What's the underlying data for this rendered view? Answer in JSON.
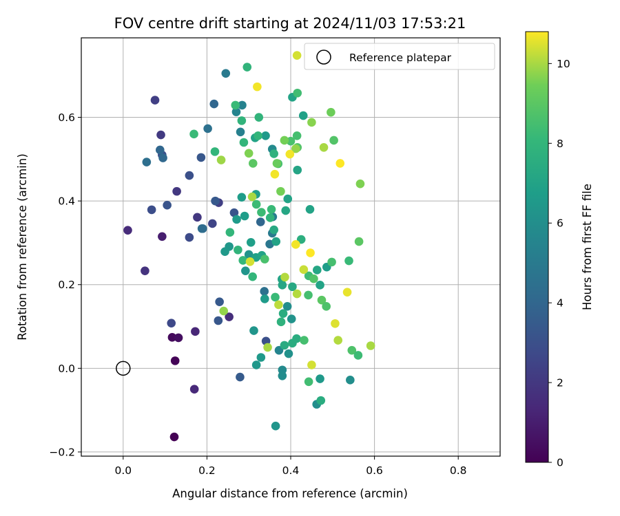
{
  "chart_data": {
    "type": "scatter",
    "title": "FOV centre drift starting at 2024/11/03 17:53:21",
    "xlabel": "Angular distance from reference (arcmin)",
    "ylabel": "Rotation from reference (arcmin)",
    "xlim": [
      -0.1,
      0.9
    ],
    "ylim": [
      -0.21,
      0.79
    ],
    "xticks": [
      0.0,
      0.2,
      0.4,
      0.6,
      0.8
    ],
    "xtick_labels": [
      "0.0",
      "0.2",
      "0.4",
      "0.6",
      "0.8"
    ],
    "yticks": [
      -0.2,
      0.0,
      0.2,
      0.4,
      0.6
    ],
    "ytick_labels": [
      "−0.2",
      "0.0",
      "0.2",
      "0.4",
      "0.6"
    ],
    "grid": true,
    "legend": {
      "label": "Reference platepar",
      "location": "upper right"
    },
    "reference_point": {
      "x": 0.0,
      "y": 0.0
    },
    "colorbar": {
      "label": "Hours from first FF file",
      "colormap": "viridis",
      "range": [
        0,
        10.8
      ],
      "ticks": [
        0,
        2,
        4,
        6,
        8,
        10
      ],
      "tick_labels": [
        "0",
        "2",
        "4",
        "6",
        "8",
        "10"
      ]
    },
    "points": [
      [
        0.122,
        -0.164,
        0.0
      ],
      [
        0.124,
        0.018,
        0.1
      ],
      [
        0.117,
        0.074,
        0.3
      ],
      [
        0.132,
        0.073,
        0.5
      ],
      [
        0.093,
        0.315,
        1.0
      ],
      [
        0.172,
        0.088,
        1.3
      ],
      [
        0.17,
        -0.05,
        1.4
      ],
      [
        0.011,
        0.33,
        1.5
      ],
      [
        0.253,
        0.123,
        1.6
      ],
      [
        0.052,
        0.233,
        1.8
      ],
      [
        0.128,
        0.423,
        2.0
      ],
      [
        0.177,
        0.361,
        2.0
      ],
      [
        0.09,
        0.558,
        2.1
      ],
      [
        0.076,
        0.641,
        2.3
      ],
      [
        0.228,
        0.396,
        2.3
      ],
      [
        0.213,
        0.346,
        2.5
      ],
      [
        0.115,
        0.108,
        2.7
      ],
      [
        0.158,
        0.313,
        2.8
      ],
      [
        0.068,
        0.379,
        2.9
      ],
      [
        0.093,
        0.51,
        3.0
      ],
      [
        0.158,
        0.461,
        3.0
      ],
      [
        0.105,
        0.39,
        3.2
      ],
      [
        0.227,
        0.114,
        3.3
      ],
      [
        0.186,
        0.504,
        3.3
      ],
      [
        0.23,
        0.159,
        3.4
      ],
      [
        0.22,
        0.4,
        3.4
      ],
      [
        0.279,
        -0.021,
        3.5
      ],
      [
        0.217,
        0.632,
        4.0
      ],
      [
        0.088,
        0.522,
        4.0
      ],
      [
        0.095,
        0.503,
        4.1
      ],
      [
        0.19,
        0.334,
        4.2
      ],
      [
        0.188,
        0.334,
        4.3
      ],
      [
        0.056,
        0.493,
        4.4
      ],
      [
        0.202,
        0.573,
        4.5
      ],
      [
        0.245,
        0.705,
        5.0
      ],
      [
        0.27,
        0.613,
        5.5
      ],
      [
        0.284,
        0.629,
        5.4
      ],
      [
        0.28,
        0.565,
        5.3
      ],
      [
        0.265,
        0.372,
        3.2
      ],
      [
        0.341,
        0.065,
        3.0
      ],
      [
        0.328,
        0.35,
        4.0
      ],
      [
        0.337,
        0.184,
        4.5
      ],
      [
        0.35,
        0.297,
        4.8
      ],
      [
        0.356,
        0.323,
        5.0
      ],
      [
        0.357,
        0.362,
        5.1
      ],
      [
        0.372,
        0.043,
        5.5
      ],
      [
        0.38,
        -0.004,
        5.8
      ],
      [
        0.38,
        -0.018,
        5.9
      ],
      [
        0.392,
        0.148,
        6.0
      ],
      [
        0.395,
        0.035,
        6.1
      ],
      [
        0.402,
        0.118,
        6.2
      ],
      [
        0.312,
        0.09,
        6.3
      ],
      [
        0.318,
        0.008,
        6.4
      ],
      [
        0.329,
        0.026,
        6.5
      ],
      [
        0.338,
        0.166,
        6.6
      ],
      [
        0.3,
        0.272,
        6.2
      ],
      [
        0.292,
        0.233,
        6.3
      ],
      [
        0.253,
        0.291,
        6.4
      ],
      [
        0.243,
        0.279,
        6.5
      ],
      [
        0.271,
        0.356,
        6.6
      ],
      [
        0.283,
        0.409,
        6.7
      ],
      [
        0.317,
        0.416,
        6.8
      ],
      [
        0.29,
        0.364,
        6.7
      ],
      [
        0.305,
        0.301,
        6.8
      ],
      [
        0.317,
        0.265,
        6.9
      ],
      [
        0.331,
        0.27,
        7.0
      ],
      [
        0.356,
        0.524,
        5.8
      ],
      [
        0.34,
        0.556,
        6.5
      ],
      [
        0.315,
        0.551,
        7.0
      ],
      [
        0.393,
        0.405,
        7.0
      ],
      [
        0.388,
        0.377,
        7.2
      ],
      [
        0.36,
        0.331,
        7.3
      ],
      [
        0.365,
        0.303,
        7.0
      ],
      [
        0.379,
        0.213,
        7.1
      ],
      [
        0.38,
        0.199,
        7.2
      ],
      [
        0.404,
        0.195,
        7.3
      ],
      [
        0.385,
        0.055,
        7.4
      ],
      [
        0.404,
        0.06,
        7.5
      ],
      [
        0.414,
        0.071,
        7.5
      ],
      [
        0.462,
        -0.086,
        6.0
      ],
      [
        0.47,
        -0.025,
        6.5
      ],
      [
        0.472,
        -0.077,
        7.5
      ],
      [
        0.542,
        -0.028,
        6.0
      ],
      [
        0.43,
        0.604,
        6.9
      ],
      [
        0.416,
        0.474,
        7.1
      ],
      [
        0.446,
        0.38,
        7.0
      ],
      [
        0.47,
        0.199,
        7.0
      ],
      [
        0.463,
        0.235,
        7.2
      ],
      [
        0.486,
        0.242,
        6.7
      ],
      [
        0.404,
        0.648,
        7.0
      ],
      [
        0.364,
        -0.138,
        6.3
      ],
      [
        0.382,
        0.131,
        7.5
      ],
      [
        0.377,
        0.111,
        7.8
      ],
      [
        0.425,
        0.308,
        7.6
      ],
      [
        0.324,
        0.6,
        7.9
      ],
      [
        0.283,
        0.592,
        7.9
      ],
      [
        0.288,
        0.54,
        8.0
      ],
      [
        0.268,
        0.629,
        8.2
      ],
      [
        0.296,
        0.72,
        7.9
      ],
      [
        0.322,
        0.556,
        8.0
      ],
      [
        0.219,
        0.518,
        8.0
      ],
      [
        0.169,
        0.56,
        8.2
      ],
      [
        0.255,
        0.325,
        8.0
      ],
      [
        0.274,
        0.283,
        7.9
      ],
      [
        0.286,
        0.258,
        8.1
      ],
      [
        0.309,
        0.219,
        8.0
      ],
      [
        0.318,
        0.392,
        8.3
      ],
      [
        0.33,
        0.373,
        8.3
      ],
      [
        0.354,
        0.38,
        8.2
      ],
      [
        0.363,
        0.17,
        8.2
      ],
      [
        0.351,
        0.36,
        7.9
      ],
      [
        0.36,
        0.513,
        7.8
      ],
      [
        0.37,
        0.489,
        8.5
      ],
      [
        0.4,
        0.543,
        8.6
      ],
      [
        0.416,
        0.658,
        8.4
      ],
      [
        0.415,
        0.556,
        8.5
      ],
      [
        0.416,
        0.528,
        8.8
      ],
      [
        0.498,
        0.254,
        8.5
      ],
      [
        0.539,
        0.257,
        8.2
      ],
      [
        0.443,
        0.221,
        8.3
      ],
      [
        0.455,
        0.214,
        8.8
      ],
      [
        0.442,
        0.175,
        8.5
      ],
      [
        0.474,
        0.163,
        9.0
      ],
      [
        0.485,
        0.148,
        8.7
      ],
      [
        0.432,
        0.067,
        8.5
      ],
      [
        0.443,
        -0.032,
        8.4
      ],
      [
        0.546,
        0.043,
        8.7
      ],
      [
        0.561,
        0.031,
        8.3
      ],
      [
        0.563,
        0.303,
        9.0
      ],
      [
        0.503,
        0.545,
        8.8
      ],
      [
        0.338,
        0.261,
        8.6
      ],
      [
        0.3,
        0.514,
        9.6
      ],
      [
        0.31,
        0.49,
        9.0
      ],
      [
        0.367,
        0.49,
        9.3
      ],
      [
        0.376,
        0.423,
        9.5
      ],
      [
        0.385,
        0.545,
        9.5
      ],
      [
        0.45,
        0.588,
        9.7
      ],
      [
        0.479,
        0.528,
        10.0
      ],
      [
        0.496,
        0.612,
        9.4
      ],
      [
        0.566,
        0.441,
        9.6
      ],
      [
        0.412,
        0.525,
        9.8
      ],
      [
        0.24,
        0.137,
        9.8
      ],
      [
        0.234,
        0.498,
        9.9
      ],
      [
        0.308,
        0.41,
        10.0
      ],
      [
        0.345,
        0.05,
        10.0
      ],
      [
        0.371,
        0.152,
        10.2
      ],
      [
        0.386,
        0.218,
        10.1
      ],
      [
        0.415,
        0.178,
        10.1
      ],
      [
        0.431,
        0.236,
        10.3
      ],
      [
        0.45,
        0.008,
        10.4
      ],
      [
        0.513,
        0.067,
        10.1
      ],
      [
        0.591,
        0.054,
        10.0
      ],
      [
        0.506,
        0.107,
        10.5
      ],
      [
        0.535,
        0.182,
        10.6
      ],
      [
        0.447,
        0.276,
        10.8
      ],
      [
        0.412,
        0.296,
        10.7
      ],
      [
        0.303,
        0.255,
        10.4
      ],
      [
        0.32,
        0.673,
        10.7
      ],
      [
        0.415,
        0.748,
        10.4
      ],
      [
        0.398,
        0.512,
        10.7
      ],
      [
        0.362,
        0.464,
        10.7
      ],
      [
        0.518,
        0.49,
        10.8
      ]
    ]
  }
}
